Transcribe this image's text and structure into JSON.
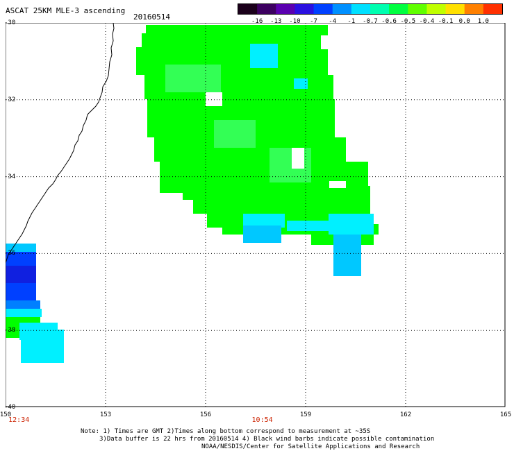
{
  "header": {
    "title": "ASCAT 25KM MLE-3 ascending",
    "date": "20160514"
  },
  "colorbar": {
    "labels": [
      "-16",
      "-13",
      "-10",
      "-7",
      "-4",
      "-1",
      "-0.7",
      "-0.6",
      "-0.5",
      "-0.4",
      "-0.1",
      "0.0",
      "1.0"
    ],
    "colors": [
      "#1a001a",
      "#3c0060",
      "#5a00b0",
      "#2a10e0",
      "#0040ff",
      "#0090ff",
      "#00e0ff",
      "#00ffb0",
      "#00ff40",
      "#60ff00",
      "#c0ff00",
      "#ffe000",
      "#ff8000",
      "#ff3000"
    ]
  },
  "axes": {
    "lat_labels": [
      "-30",
      "-32",
      "-34",
      "-36",
      "-38",
      "-40"
    ],
    "lon_labels": [
      "150",
      "153",
      "156",
      "159",
      "162",
      "165"
    ],
    "lon_range": [
      150,
      165
    ],
    "lat_range": [
      -30,
      -40
    ],
    "grid": "dotted"
  },
  "times": [
    {
      "label": "12:34",
      "lon": 150.4
    },
    {
      "label": "10:54",
      "lon": 157.7
    }
  ],
  "colors": {
    "green": "#00ff00",
    "lightgreen": "#33ff55",
    "cyan_light": "#00f0ff",
    "cyan": "#00c8ff",
    "blue_mid": "#0080ff",
    "blue": "#0040ff",
    "blue_dark": "#1020e0"
  },
  "notes": {
    "line1": "Note: 1) Times are GMT 2)Times along bottom correspond to measurement at ~35S",
    "line2": "3)Data buffer is 22 hrs from 20160514 4) Black wind barbs indicate possible contamination",
    "line3": "NOAA/NESDIS/Center for Satellite Applications and Research"
  }
}
